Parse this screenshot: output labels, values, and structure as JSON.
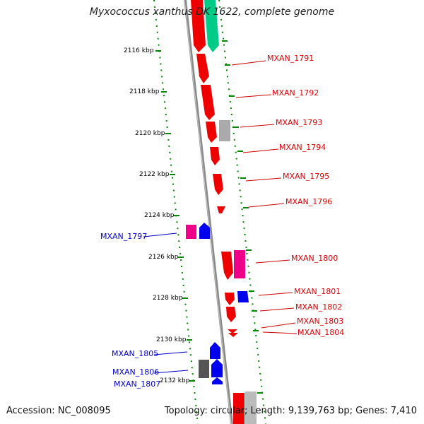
{
  "title": "Myxococcus xanthus DK 1622, complete genome",
  "footer": {
    "accession": "Accession: NC_008095",
    "summary": "Topology: circular; Length: 9,139,763 bp; Genes: 7,410"
  },
  "colors": {
    "forward_cds": "#ee0000",
    "reverse_cds": "#0000ee",
    "teal": "#00cc88",
    "magenta": "#ee0088",
    "gray": "#999999",
    "dark_gray": "#555555",
    "backbone": "#8a8a8a",
    "tick": "#008800",
    "scale_label": "#000000"
  },
  "scale_labels": [
    "2116 kbp",
    "2118 kbp",
    "2120 kbp",
    "2122 kbp",
    "2124 kbp",
    "2126 kbp",
    "2128 kbp",
    "2130 kbp",
    "2132 kbp"
  ],
  "gene_labels": {
    "forward": [
      "MXAN_1791",
      "MXAN_1792",
      "MXAN_1793",
      "MXAN_1794",
      "MXAN_1795",
      "MXAN_1796",
      "MXAN_1800",
      "MXAN_1801",
      "MXAN_1802",
      "MXAN_1803",
      "MXAN_1804"
    ],
    "reverse": [
      "MXAN_1797",
      "MXAN_1805",
      "MXAN_1806",
      "MXAN_1807"
    ]
  }
}
